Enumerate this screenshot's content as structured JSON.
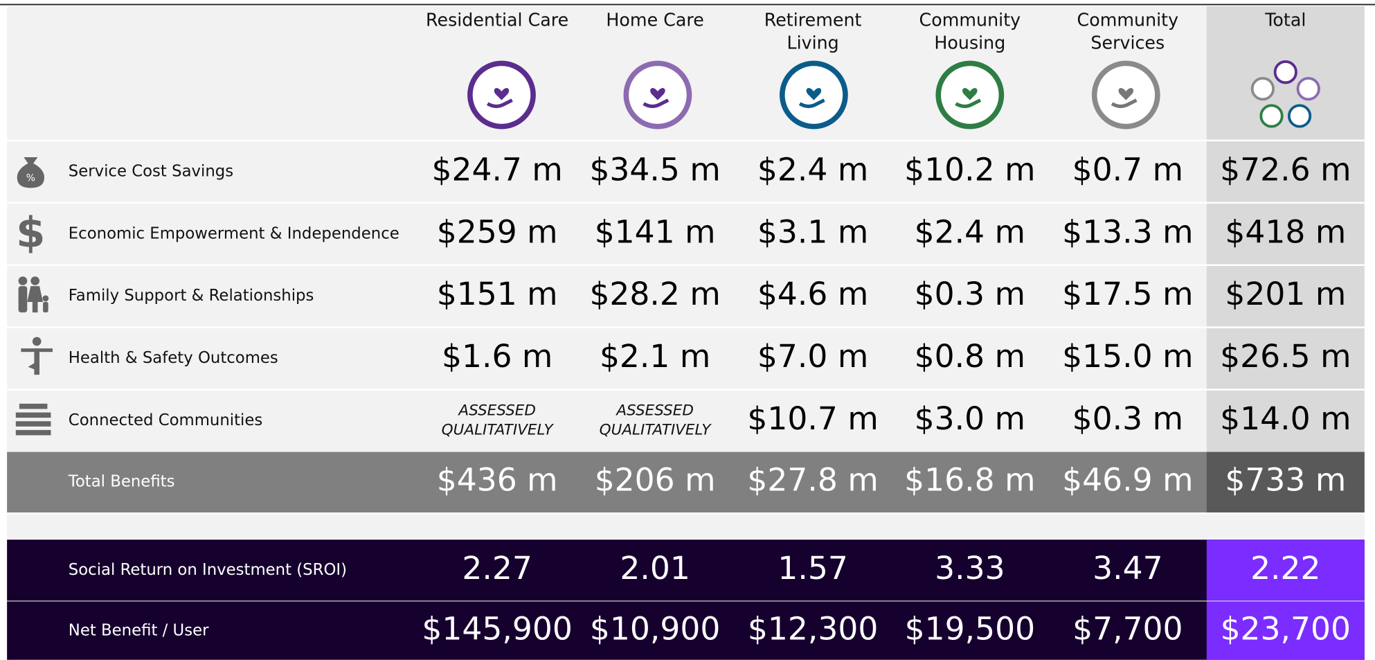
{
  "columns": [
    [
      "Residential Care"
    ],
    [
      "Home Care"
    ],
    [
      "Retirement",
      "Living"
    ],
    [
      "Community",
      "Housing"
    ],
    [
      "Community",
      "Services"
    ],
    [
      "Total"
    ]
  ],
  "rows": [
    {
      "label": "Service Cost Savings",
      "values": [
        "$24.7 m",
        "$34.5 m",
        "$2.4 m",
        "$10.2 m",
        "$0.7 m",
        "$72.6 m"
      ]
    },
    {
      "label": "Economic Empowerment & Independence",
      "values": [
        "$259 m",
        "$141 m",
        "$3.1 m",
        "$2.4 m",
        "$13.3 m",
        "$418 m"
      ]
    },
    {
      "label": "Family Support & Relationships",
      "values": [
        "$151 m",
        "$28.2 m",
        "$4.6 m",
        "$0.3 m",
        "$17.5 m",
        "$201 m"
      ]
    },
    {
      "label": "Health & Safety Outcomes",
      "values": [
        "$1.6 m",
        "$2.1 m",
        "$7.0 m",
        "$0.8 m",
        "$15.0 m",
        "$26.5 m"
      ]
    },
    {
      "label": "Connected Communities",
      "values": [
        [
          "ASSESSED",
          "QUALITATIVELY"
        ],
        [
          "ASSESSED",
          "QUALITATIVELY"
        ],
        "$10.7 m",
        "$3.0 m",
        "$0.3 m",
        "$14.0 m"
      ]
    }
  ],
  "total_benefits": {
    "label": "Total Benefits",
    "values": [
      "$436 m",
      "$206 m",
      "$27.8 m",
      "$16.8 m",
      "$46.9 m",
      "$733 m"
    ]
  },
  "sroi": {
    "label": "Social Return on Investment (SROI)",
    "values": [
      "2.27",
      "2.01",
      "1.57",
      "3.33",
      "3.47",
      "2.22"
    ]
  },
  "net_benefit": {
    "label": "Net Benefit / User",
    "values": [
      "$145,900",
      "$10,900",
      "$12,300",
      "$19,500",
      "$7,700",
      "$23,700"
    ]
  }
}
